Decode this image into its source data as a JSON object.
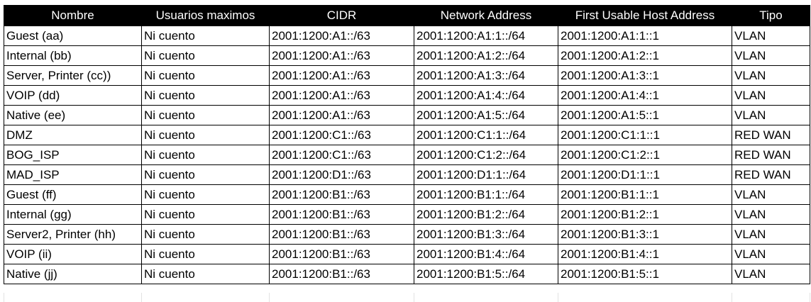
{
  "columns": [
    "Nombre",
    "Usuarios maximos",
    "CIDR",
    "Network Address",
    "First Usable Host Address",
    "Tipo"
  ],
  "rows": [
    [
      "Guest (aa)",
      "Ni cuento",
      "2001:1200:A1::/63",
      "2001:1200:A1:1::/64",
      "2001:1200:A1:1::1",
      "VLAN"
    ],
    [
      "Internal (bb)",
      "Ni cuento",
      "2001:1200:A1::/63",
      "2001:1200:A1:2::/64",
      "2001:1200:A1:2::1",
      "VLAN"
    ],
    [
      "Server, Printer (cc))",
      "Ni cuento",
      "2001:1200:A1::/63",
      "2001:1200:A1:3::/64",
      "2001:1200:A1:3::1",
      "VLAN"
    ],
    [
      "VOIP (dd)",
      "Ni cuento",
      "2001:1200:A1::/63",
      "2001:1200:A1:4::/64",
      "2001:1200:A1:4::1",
      "VLAN"
    ],
    [
      "Native (ee)",
      "Ni cuento",
      "2001:1200:A1::/63",
      "2001:1200:A1:5::/64",
      "2001:1200:A1:5::1",
      "VLAN"
    ],
    [
      "DMZ",
      "Ni cuento",
      "2001:1200:C1::/63",
      "2001:1200:C1:1::/64",
      "2001:1200:C1:1::1",
      "RED WAN"
    ],
    [
      "BOG_ISP",
      "Ni cuento",
      "2001:1200:C1::/63",
      "2001:1200:C1:2::/64",
      "2001:1200:C1:2::1",
      "RED WAN"
    ],
    [
      "MAD_ISP",
      "Ni cuento",
      "2001:1200:D1::/63",
      "2001:1200:D1:1::/64",
      "2001:1200:D1:1::1",
      "RED WAN"
    ],
    [
      "Guest (ff)",
      "Ni cuento",
      "2001:1200:B1::/63",
      "2001:1200:B1:1::/64",
      "2001:1200:B1:1::1",
      "VLAN"
    ],
    [
      "Internal (gg)",
      "Ni cuento",
      "2001:1200:B1::/63",
      "2001:1200:B1:2::/64",
      "2001:1200:B1:2::1",
      "VLAN"
    ],
    [
      "Server2, Printer (hh)",
      "Ni cuento",
      "2001:1200:B1::/63",
      "2001:1200:B1:3::/64",
      "2001:1200:B1:3::1",
      "VLAN"
    ],
    [
      "VOIP (ii)",
      "Ni cuento",
      "2001:1200:B1::/63",
      "2001:1200:B1:4::/64",
      "2001:1200:B1:4::1",
      "VLAN"
    ],
    [
      "Native (jj)",
      "Ni cuento",
      "2001:1200:B1::/63",
      "2001:1200:B1:5::/64",
      "2001:1200:B1:5::1",
      "VLAN"
    ]
  ],
  "colors": {
    "header_bg": "#000000",
    "header_text": "#ffffff",
    "cell_border": "#000000",
    "gridline": "#e2e2e2"
  }
}
